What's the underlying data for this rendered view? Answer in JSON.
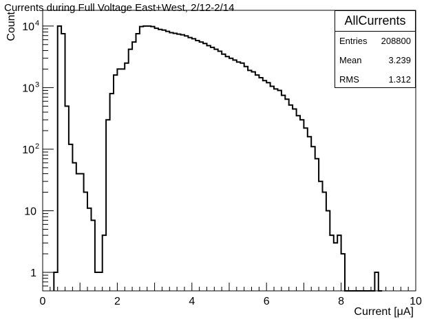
{
  "title": "Currents during Full Voltage East+West, 2/12-2/14",
  "stats": {
    "name": "AllCurrents",
    "rows": [
      {
        "label": "Entries",
        "value": "208800"
      },
      {
        "label": "Mean",
        "value": "3.239"
      },
      {
        "label": "RMS",
        "value": "1.312"
      }
    ]
  },
  "chart_data": {
    "type": "histogram",
    "xlabel": "Current [μA]",
    "ylabel": "Count",
    "xlim": [
      0,
      10
    ],
    "ylim": [
      0.5,
      18000
    ],
    "yscale": "log",
    "x_ticks": [
      "0",
      "2",
      "4",
      "6",
      "8",
      "10"
    ],
    "y_ticks": [
      {
        "value": 1,
        "base": "1",
        "exp": ""
      },
      {
        "value": 10,
        "base": "10",
        "exp": ""
      },
      {
        "value": 100,
        "base": "10",
        "exp": "2"
      },
      {
        "value": 1000,
        "base": "10",
        "exp": "3"
      },
      {
        "value": 10000,
        "base": "10",
        "exp": "4"
      }
    ],
    "grid": false,
    "line_color": "#000000",
    "bin_width": 0.1,
    "bins": [
      [
        0.3,
        1
      ],
      [
        0.4,
        10000
      ],
      [
        0.5,
        7500
      ],
      [
        0.6,
        500
      ],
      [
        0.7,
        120
      ],
      [
        0.8,
        60
      ],
      [
        0.9,
        40
      ],
      [
        1.0,
        40
      ],
      [
        1.1,
        20
      ],
      [
        1.2,
        11
      ],
      [
        1.3,
        7
      ],
      [
        1.4,
        1
      ],
      [
        1.5,
        1
      ],
      [
        1.6,
        4
      ],
      [
        1.7,
        300
      ],
      [
        1.8,
        800
      ],
      [
        1.9,
        1600
      ],
      [
        2.0,
        2000
      ],
      [
        2.1,
        2000
      ],
      [
        2.2,
        2500
      ],
      [
        2.3,
        4200
      ],
      [
        2.4,
        5500
      ],
      [
        2.5,
        7500
      ],
      [
        2.6,
        9800
      ],
      [
        2.7,
        10000
      ],
      [
        2.8,
        10000
      ],
      [
        2.9,
        9800
      ],
      [
        3.0,
        9200
      ],
      [
        3.1,
        8800
      ],
      [
        3.2,
        8600
      ],
      [
        3.3,
        8200
      ],
      [
        3.4,
        7800
      ],
      [
        3.5,
        7600
      ],
      [
        3.6,
        7400
      ],
      [
        3.7,
        7200
      ],
      [
        3.8,
        6900
      ],
      [
        3.9,
        6500
      ],
      [
        4.0,
        6200
      ],
      [
        4.1,
        5800
      ],
      [
        4.2,
        5500
      ],
      [
        4.3,
        5200
      ],
      [
        4.4,
        4800
      ],
      [
        4.5,
        4500
      ],
      [
        4.6,
        4200
      ],
      [
        4.7,
        3900
      ],
      [
        4.8,
        3500
      ],
      [
        4.9,
        3200
      ],
      [
        5.0,
        3000
      ],
      [
        5.1,
        2800
      ],
      [
        5.2,
        2600
      ],
      [
        5.3,
        2500
      ],
      [
        5.4,
        2200
      ],
      [
        5.5,
        1900
      ],
      [
        5.6,
        1800
      ],
      [
        5.7,
        1600
      ],
      [
        5.8,
        1450
      ],
      [
        5.9,
        1300
      ],
      [
        6.0,
        1200
      ],
      [
        6.1,
        1050
      ],
      [
        6.2,
        950
      ],
      [
        6.3,
        900
      ],
      [
        6.4,
        750
      ],
      [
        6.5,
        650
      ],
      [
        6.6,
        520
      ],
      [
        6.7,
        450
      ],
      [
        6.8,
        350
      ],
      [
        6.9,
        300
      ],
      [
        7.0,
        220
      ],
      [
        7.1,
        160
      ],
      [
        7.2,
        110
      ],
      [
        7.3,
        70
      ],
      [
        7.4,
        30
      ],
      [
        7.5,
        20
      ],
      [
        7.6,
        10
      ],
      [
        7.7,
        4
      ],
      [
        7.8,
        3
      ],
      [
        7.9,
        4
      ],
      [
        8.0,
        2
      ],
      [
        8.1,
        0
      ],
      [
        8.2,
        0
      ],
      [
        8.3,
        0
      ],
      [
        8.4,
        0
      ],
      [
        8.5,
        0
      ],
      [
        8.6,
        0
      ],
      [
        8.7,
        0
      ],
      [
        8.8,
        0
      ],
      [
        8.9,
        1
      ],
      [
        9.0,
        0
      ]
    ]
  }
}
